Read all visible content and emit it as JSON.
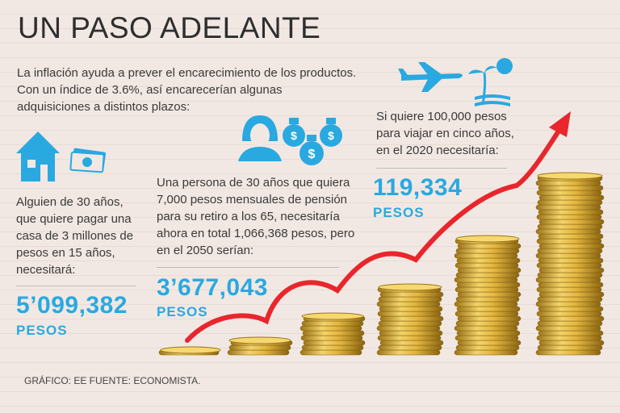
{
  "header": {
    "title": "UN PASO ADELANTE"
  },
  "intro": [
    "La inflación ayuda a prever el encarecimiento de los productos.",
    " Con un índice de 3.6%, así encarecerían algunas",
    "adquisiciones a distintos plazos:"
  ],
  "cases": [
    {
      "lines": [
        "Alguien de 30 años,",
        "que quiere pagar una",
        "casa de 3 millones de",
        "pesos en 15 años,",
        "necesitará:"
      ],
      "amount": "5’099,382",
      "unit": "PESOS"
    },
    {
      "lines": [
        "Una persona de 30 años que quiera",
        "7,000 pesos mensuales de pensión",
        "para su retiro a los 65, necesitaría",
        "ahora en total 1,066,368 pesos, pero",
        "en el 2050 serían:"
      ],
      "amount": "3’677,043",
      "unit": "PESOS"
    },
    {
      "lines": [
        "Si quiere 100,000 pesos",
        "para viajar en cinco años,",
        "en el 2020 necesitaría:"
      ],
      "amount": "119,334",
      "unit": "PESOS"
    }
  ],
  "footer": {
    "source": "GRÁFICO: EE FUENTE: ECONOMISTA."
  }
}
